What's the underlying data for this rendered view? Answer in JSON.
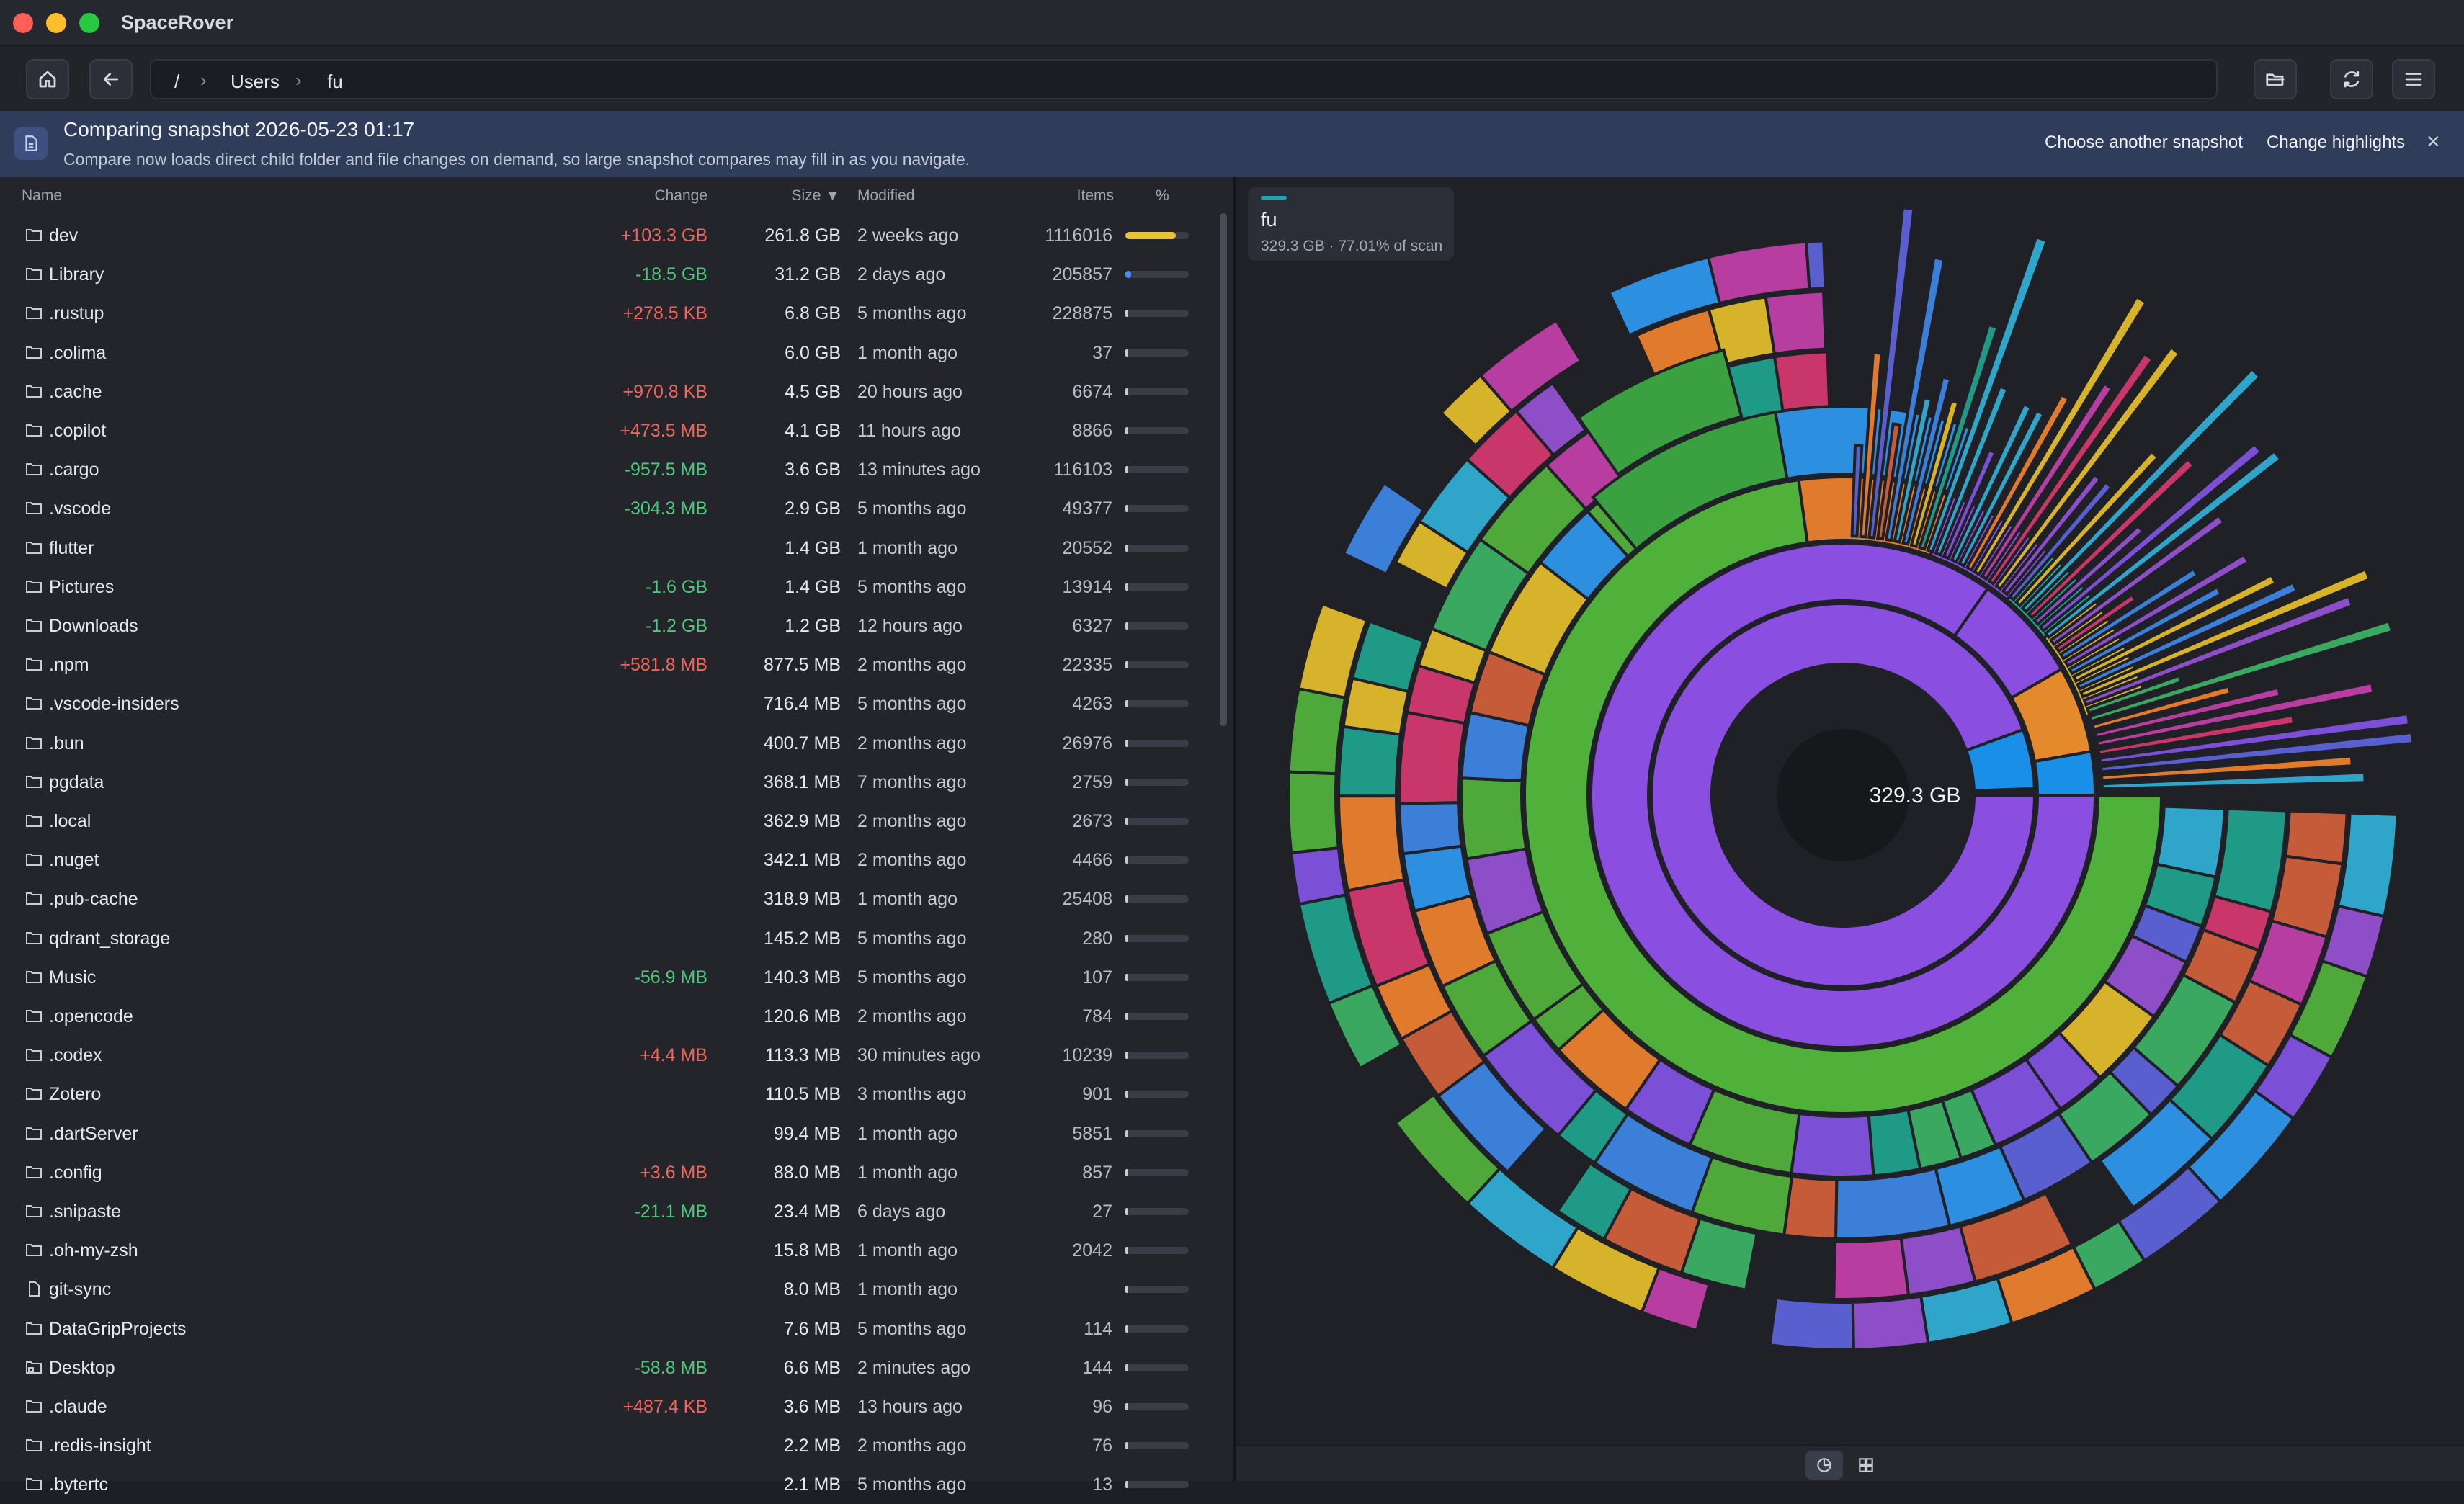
{
  "app": {
    "title": "SpaceRover"
  },
  "toolbar": {
    "breadcrumb": [
      "/",
      "Users",
      "fu"
    ]
  },
  "banner": {
    "title": "Comparing snapshot 2026-05-23 01:17",
    "subtitle": "Compare now loads direct child folder and file changes on demand, so large snapshot compares may fill in as you navigate.",
    "choose_label": "Choose another snapshot",
    "highlights_label": "Change highlights",
    "close_label": "×"
  },
  "columns": {
    "name": "Name",
    "change": "Change",
    "size": "Size ▼",
    "modified": "Modified",
    "items": "Items",
    "percent": "%"
  },
  "rows": [
    {
      "name": "dev",
      "change": "+103.3 GB",
      "size": "261.8 GB",
      "modified": "2 weeks ago",
      "items": "1116016",
      "pct": 0.795,
      "icon": "folder-icon"
    },
    {
      "name": "Library",
      "change": "-18.5 GB",
      "size": "31.2 GB",
      "modified": "2 days ago",
      "items": "205857",
      "pct": 0.095,
      "icon": "folder-icon"
    },
    {
      "name": ".rustup",
      "change": "+278.5 KB",
      "size": "6.8 GB",
      "modified": "5 months ago",
      "items": "228875",
      "pct": 0.021,
      "icon": "folder-icon"
    },
    {
      "name": ".colima",
      "change": "",
      "size": "6.0 GB",
      "modified": "1 month ago",
      "items": "37",
      "pct": 0.018,
      "icon": "folder-icon"
    },
    {
      "name": ".cache",
      "change": "+970.8 KB",
      "size": "4.5 GB",
      "modified": "20 hours ago",
      "items": "6674",
      "pct": 0.014,
      "icon": "folder-icon"
    },
    {
      "name": ".copilot",
      "change": "+473.5 MB",
      "size": "4.1 GB",
      "modified": "11 hours ago",
      "items": "8866",
      "pct": 0.012,
      "icon": "folder-icon"
    },
    {
      "name": ".cargo",
      "change": "-957.5 MB",
      "size": "3.6 GB",
      "modified": "13 minutes ago",
      "items": "116103",
      "pct": 0.011,
      "icon": "folder-icon"
    },
    {
      "name": ".vscode",
      "change": "-304.3 MB",
      "size": "2.9 GB",
      "modified": "5 months ago",
      "items": "49377",
      "pct": 0.009,
      "icon": "folder-icon"
    },
    {
      "name": "flutter",
      "change": "",
      "size": "1.4 GB",
      "modified": "1 month ago",
      "items": "20552",
      "pct": 0.004,
      "icon": "folder-icon"
    },
    {
      "name": "Pictures",
      "change": "-1.6 GB",
      "size": "1.4 GB",
      "modified": "5 months ago",
      "items": "13914",
      "pct": 0.004,
      "icon": "folder-icon"
    },
    {
      "name": "Downloads",
      "change": "-1.2 GB",
      "size": "1.2 GB",
      "modified": "12 hours ago",
      "items": "6327",
      "pct": 0.004,
      "icon": "folder-icon"
    },
    {
      "name": ".npm",
      "change": "+581.8 MB",
      "size": "877.5 MB",
      "modified": "2 months ago",
      "items": "22335",
      "pct": 0.003,
      "icon": "folder-icon"
    },
    {
      "name": ".vscode-insiders",
      "change": "",
      "size": "716.4 MB",
      "modified": "5 months ago",
      "items": "4263",
      "pct": 0.002,
      "icon": "folder-icon"
    },
    {
      "name": ".bun",
      "change": "",
      "size": "400.7 MB",
      "modified": "2 months ago",
      "items": "26976",
      "pct": 0.001,
      "icon": "folder-icon"
    },
    {
      "name": "pgdata",
      "change": "",
      "size": "368.1 MB",
      "modified": "7 months ago",
      "items": "2759",
      "pct": 0.001,
      "icon": "folder-icon"
    },
    {
      "name": ".local",
      "change": "",
      "size": "362.9 MB",
      "modified": "2 months ago",
      "items": "2673",
      "pct": 0.001,
      "icon": "folder-icon"
    },
    {
      "name": ".nuget",
      "change": "",
      "size": "342.1 MB",
      "modified": "2 months ago",
      "items": "4466",
      "pct": 0.001,
      "icon": "folder-icon"
    },
    {
      "name": ".pub-cache",
      "change": "",
      "size": "318.9 MB",
      "modified": "1 month ago",
      "items": "25408",
      "pct": 0.001,
      "icon": "folder-icon"
    },
    {
      "name": "qdrant_storage",
      "change": "",
      "size": "145.2 MB",
      "modified": "5 months ago",
      "items": "280",
      "pct": 0.0,
      "icon": "folder-icon"
    },
    {
      "name": "Music",
      "change": "-56.9 MB",
      "size": "140.3 MB",
      "modified": "5 months ago",
      "items": "107",
      "pct": 0.0,
      "icon": "folder-icon"
    },
    {
      "name": ".opencode",
      "change": "",
      "size": "120.6 MB",
      "modified": "2 months ago",
      "items": "784",
      "pct": 0.0,
      "icon": "folder-icon"
    },
    {
      "name": ".codex",
      "change": "+4.4 MB",
      "size": "113.3 MB",
      "modified": "30 minutes ago",
      "items": "10239",
      "pct": 0.0,
      "icon": "folder-icon"
    },
    {
      "name": "Zotero",
      "change": "",
      "size": "110.5 MB",
      "modified": "3 months ago",
      "items": "901",
      "pct": 0.0,
      "icon": "folder-icon"
    },
    {
      "name": ".dartServer",
      "change": "",
      "size": "99.4 MB",
      "modified": "1 month ago",
      "items": "5851",
      "pct": 0.0,
      "icon": "folder-icon"
    },
    {
      "name": ".config",
      "change": "+3.6 MB",
      "size": "88.0 MB",
      "modified": "1 month ago",
      "items": "857",
      "pct": 0.0,
      "icon": "folder-icon"
    },
    {
      "name": ".snipaste",
      "change": "-21.1 MB",
      "size": "23.4 MB",
      "modified": "6 days ago",
      "items": "27",
      "pct": 0.0,
      "icon": "folder-icon"
    },
    {
      "name": ".oh-my-zsh",
      "change": "",
      "size": "15.8 MB",
      "modified": "1 month ago",
      "items": "2042",
      "pct": 0.0,
      "icon": "folder-icon"
    },
    {
      "name": "git-sync",
      "change": "",
      "size": "8.0 MB",
      "modified": "1 month ago",
      "items": "",
      "pct": 0.0,
      "icon": "file-icon"
    },
    {
      "name": "DataGripProjects",
      "change": "",
      "size": "7.6 MB",
      "modified": "5 months ago",
      "items": "114",
      "pct": 0.0,
      "icon": "folder-icon"
    },
    {
      "name": "Desktop",
      "change": "-58.8 MB",
      "size": "6.6 MB",
      "modified": "2 minutes ago",
      "items": "144",
      "pct": 0.0,
      "icon": "locked-folder-icon"
    },
    {
      "name": ".claude",
      "change": "+487.4 KB",
      "size": "3.6 MB",
      "modified": "13 hours ago",
      "items": "96",
      "pct": 0.0,
      "icon": "folder-icon"
    },
    {
      "name": ".redis-insight",
      "change": "",
      "size": "2.2 MB",
      "modified": "2 months ago",
      "items": "76",
      "pct": 0.0,
      "icon": "folder-icon"
    },
    {
      "name": ".bytertc",
      "change": "",
      "size": "2.1 MB",
      "modified": "5 months ago",
      "items": "13",
      "pct": 0.0,
      "icon": "folder-icon"
    }
  ],
  "viz": {
    "card_name": "fu",
    "card_meta": "329.3 GB · 77.01% of scan",
    "center_label": "329.3 GB"
  },
  "colors": {
    "bar_top": "#e9c23a",
    "bar_second": "#4a8df0",
    "bar_default": "#c9ccd4",
    "positive_change": "#f0645a",
    "negative_change": "#4cc97d",
    "banner_bg": "#2f3c5a"
  }
}
